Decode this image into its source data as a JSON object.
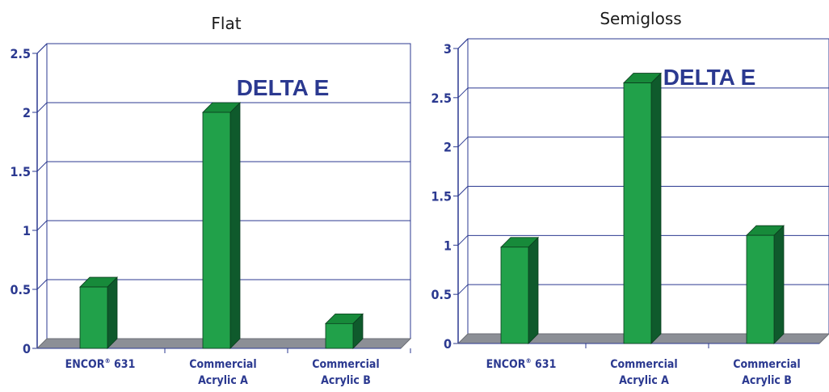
{
  "colors": {
    "bar_front": "#21a14a",
    "bar_top": "#178a3a",
    "bar_side": "#0f5a2c",
    "axis": "#2b3990",
    "floor": "#8c8f96",
    "text_blue": "#2b3990"
  },
  "chart_data": [
    {
      "type": "bar",
      "title": "Flat",
      "annotation": "DELTA E",
      "categories": [
        {
          "line1": "ENCOR",
          "sup": "®",
          "rest": " 631",
          "line2": ""
        },
        {
          "line1": "Commercial",
          "sup": "",
          "rest": "",
          "line2": "Acrylic A"
        },
        {
          "line1": "Commercial",
          "sup": "",
          "rest": "",
          "line2": "Acrylic B"
        }
      ],
      "values": [
        0.52,
        2.0,
        0.21
      ],
      "ylim": [
        0,
        2.5
      ],
      "yticks": [
        "0",
        "0.5",
        "1",
        "1.5",
        "2",
        "2.5"
      ],
      "grid": true,
      "xlabel": "",
      "ylabel": ""
    },
    {
      "type": "bar",
      "title": "Semigloss",
      "annotation": "DELTA E",
      "categories": [
        {
          "line1": "ENCOR",
          "sup": "®",
          "rest": " 631",
          "line2": ""
        },
        {
          "line1": "Commercial",
          "sup": "",
          "rest": "",
          "line2": "Acrylic A"
        },
        {
          "line1": "Commercial",
          "sup": "",
          "rest": "",
          "line2": "Acrylic B"
        }
      ],
      "values": [
        0.98,
        2.65,
        1.1
      ],
      "ylim": [
        0,
        3
      ],
      "yticks": [
        "0",
        "0.5",
        "1",
        "1.5",
        "2",
        "2.5",
        "3"
      ],
      "grid": true,
      "xlabel": "",
      "ylabel": ""
    }
  ]
}
